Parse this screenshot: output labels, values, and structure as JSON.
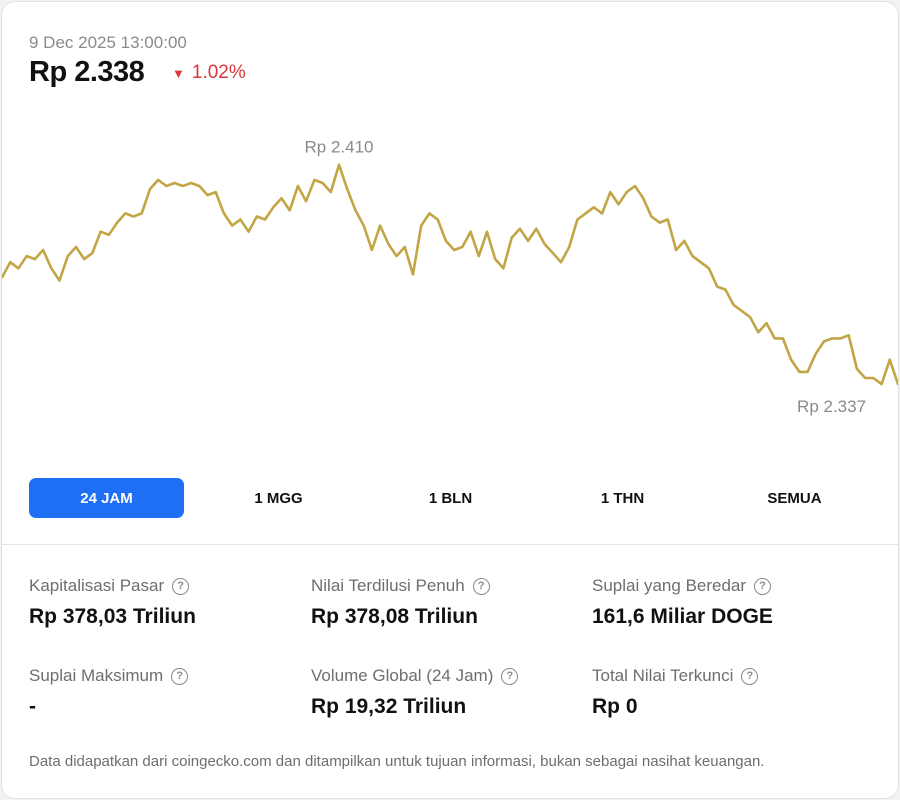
{
  "header": {
    "timestamp": "9 Dec 2025 13:00:00",
    "price": "Rp 2.338",
    "change": "1.02%",
    "change_color": "#d9363e"
  },
  "chart_data": {
    "type": "line",
    "line_color": "#c2a545",
    "high_label": "Rp 2.410",
    "low_label": "Rp 2.337",
    "ylim": [
      2319,
      2424
    ],
    "grid": false,
    "x_count": 110,
    "series": [
      {
        "values": [
          2373,
          2378,
          2376,
          2380,
          2379,
          2382,
          2376,
          2372,
          2380,
          2383,
          2379,
          2381,
          2388,
          2387,
          2391,
          2394,
          2393,
          2394,
          2402,
          2405,
          2403,
          2404,
          2403,
          2404,
          2403,
          2400,
          2401,
          2394,
          2390,
          2392,
          2388,
          2393,
          2392,
          2396,
          2399,
          2395,
          2403,
          2398,
          2405,
          2404,
          2401,
          2410,
          2402,
          2395,
          2390,
          2382,
          2390,
          2384,
          2380,
          2383,
          2374,
          2390,
          2394,
          2392,
          2385,
          2382,
          2383,
          2388,
          2380,
          2388,
          2379,
          2376,
          2386,
          2389,
          2385,
          2389,
          2384,
          2381,
          2378,
          2383,
          2392,
          2394,
          2396,
          2394,
          2401,
          2397,
          2401,
          2403,
          2399,
          2393,
          2391,
          2392,
          2382,
          2385,
          2380,
          2378,
          2376,
          2370,
          2369,
          2364,
          2362,
          2360,
          2355,
          2358,
          2353,
          2353,
          2346,
          2342,
          2342,
          2348,
          2352,
          2353,
          2353,
          2354,
          2343,
          2340,
          2340,
          2338,
          2346,
          2338
        ]
      }
    ],
    "timeframes": [
      "24 JAM",
      "1 MGG",
      "1 BLN",
      "1 THN",
      "SEMUA"
    ],
    "active_timeframe": "24 JAM"
  },
  "stats": [
    {
      "label": "Kapitalisasi Pasar",
      "value": "Rp 378,03 Triliun"
    },
    {
      "label": "Nilai Terdilusi Penuh",
      "value": "Rp 378,08 Triliun"
    },
    {
      "label": "Suplai yang Beredar",
      "value": "161,6 Miliar DOGE"
    },
    {
      "label": "Suplai Maksimum",
      "value": "-"
    },
    {
      "label": "Volume Global (24 Jam)",
      "value": "Rp 19,32 Triliun"
    },
    {
      "label": "Total Nilai Terkunci",
      "value": "Rp 0"
    }
  ],
  "footnote": "Data didapatkan dari coingecko.com dan ditampilkan untuk tujuan informasi, bukan sebagai nasihat keuangan.",
  "colors": {
    "accent": "#1e6ff5"
  }
}
